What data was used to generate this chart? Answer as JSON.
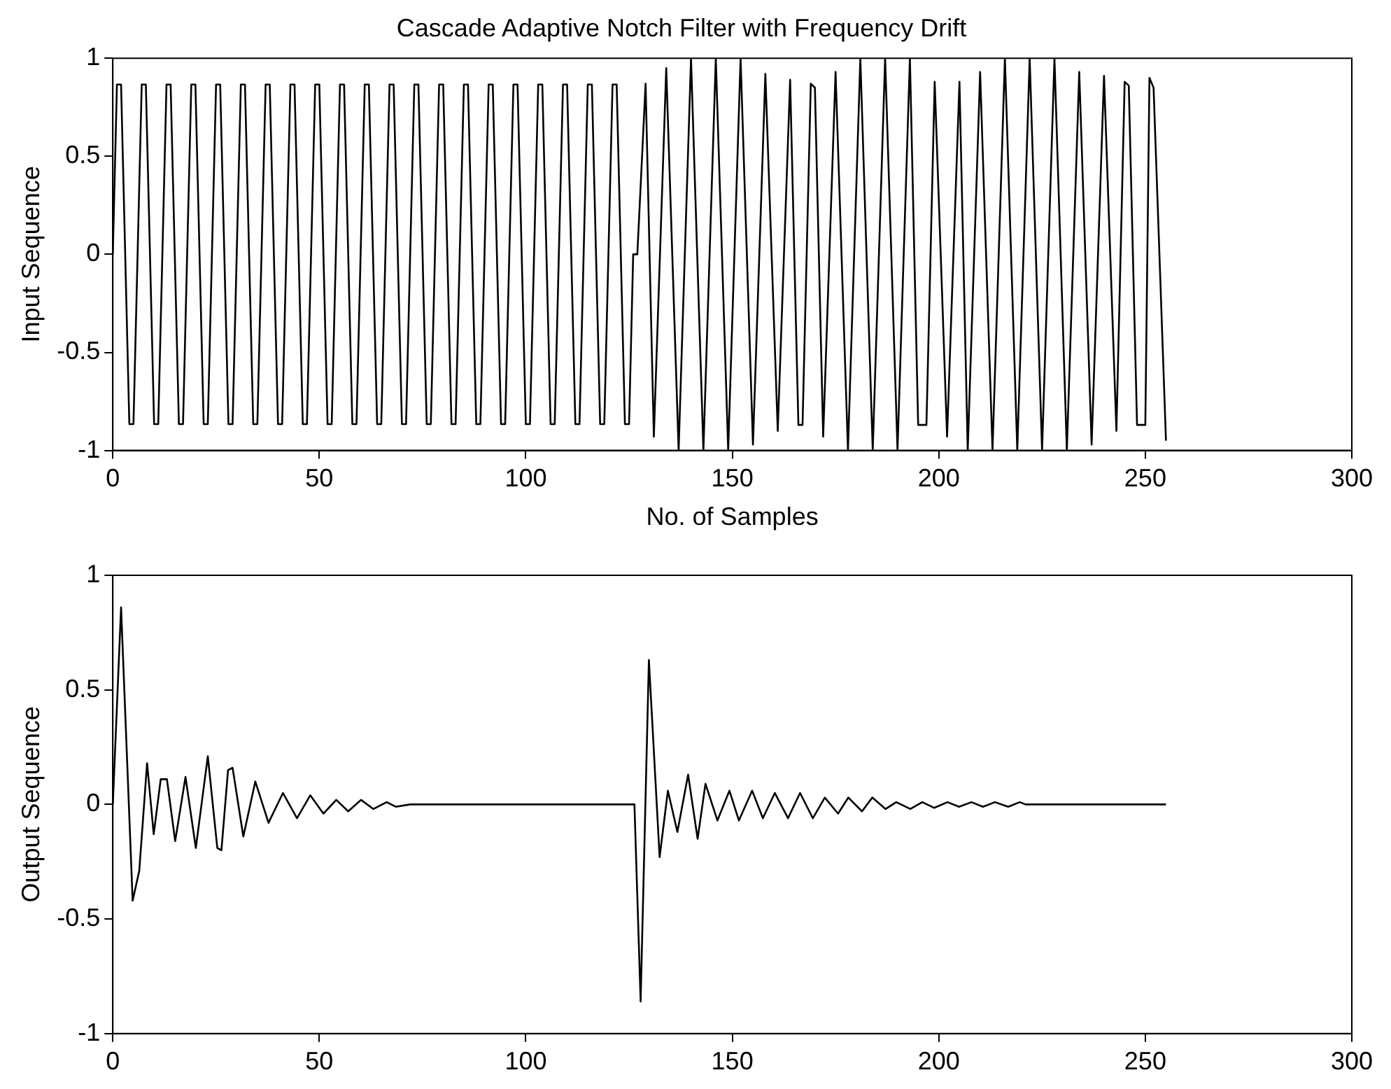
{
  "chart_data": [
    {
      "type": "line",
      "title": "Cascade Adaptive Notch Filter with Frequency Drift",
      "xlabel": "No. of Samples",
      "ylabel": "Input Sequence",
      "xlim": [
        0,
        300
      ],
      "xticks": [
        0,
        50,
        100,
        150,
        200,
        250,
        300
      ],
      "ylim": [
        -1,
        1
      ],
      "yticks": [
        -1,
        -0.5,
        0,
        0.5,
        1
      ],
      "grid": false,
      "legend": false,
      "series": [
        {
          "color": "#000000",
          "x": [
            0,
            1,
            2,
            4,
            5,
            6,
            7,
            8,
            10,
            11,
            12,
            13,
            14,
            16,
            17,
            18,
            19,
            20,
            22,
            23,
            24,
            25,
            26,
            28,
            29,
            30,
            31,
            32,
            34,
            35,
            36,
            37,
            38,
            40,
            41,
            42,
            43,
            44,
            46,
            47,
            48,
            49,
            50,
            52,
            53,
            54,
            55,
            56,
            58,
            59,
            60,
            61,
            62,
            64,
            65,
            66,
            67,
            68,
            70,
            71,
            72,
            73,
            74,
            76,
            77,
            78,
            79,
            80,
            82,
            83,
            84,
            85,
            86,
            88,
            89,
            90,
            91,
            92,
            94,
            95,
            96,
            97,
            98,
            100,
            101,
            102,
            103,
            104,
            106,
            107,
            108,
            109,
            110,
            112,
            113,
            114,
            115,
            116,
            118,
            119,
            120,
            121,
            122,
            124,
            125,
            126,
            127,
            129,
            131,
            134,
            137,
            140,
            143,
            146,
            149,
            152,
            155,
            158,
            161,
            164,
            166,
            167,
            169,
            170,
            172,
            175,
            178,
            181,
            184,
            187,
            190,
            193,
            195,
            197,
            199,
            202,
            205,
            207,
            210,
            213,
            216,
            219,
            222,
            225,
            228,
            231,
            234,
            237,
            240,
            243,
            245,
            246,
            248,
            250,
            251,
            252,
            255
          ],
          "values": [
            0,
            0.866,
            0.866,
            -0.866,
            -0.866,
            0,
            0.866,
            0.866,
            -0.866,
            -0.866,
            0,
            0.866,
            0.866,
            -0.866,
            -0.866,
            0,
            0.866,
            0.866,
            -0.866,
            -0.866,
            0,
            0.866,
            0.866,
            -0.866,
            -0.866,
            0,
            0.866,
            0.866,
            -0.866,
            -0.866,
            0,
            0.866,
            0.866,
            -0.866,
            -0.866,
            0,
            0.866,
            0.866,
            -0.866,
            -0.866,
            0,
            0.866,
            0.866,
            -0.866,
            -0.866,
            0,
            0.866,
            0.866,
            -0.866,
            -0.866,
            0,
            0.866,
            0.866,
            -0.866,
            -0.866,
            0,
            0.866,
            0.866,
            -0.866,
            -0.866,
            0,
            0.866,
            0.866,
            -0.866,
            -0.866,
            0,
            0.866,
            0.866,
            -0.866,
            -0.866,
            0,
            0.866,
            0.866,
            -0.866,
            -0.866,
            0,
            0.866,
            0.866,
            -0.866,
            -0.866,
            0,
            0.866,
            0.866,
            -0.866,
            -0.866,
            0,
            0.866,
            0.866,
            -0.866,
            -0.866,
            0,
            0.866,
            0.866,
            -0.866,
            -0.866,
            0,
            0.866,
            0.866,
            -0.866,
            -0.866,
            0,
            0.866,
            0.866,
            -0.866,
            -0.866,
            0,
            0,
            0.87,
            -0.93,
            0.95,
            -1,
            1,
            -1,
            1,
            -1,
            1,
            -0.97,
            0.92,
            -0.9,
            0.89,
            -0.87,
            -0.87,
            0.87,
            0.85,
            -0.93,
            0.93,
            -1,
            1,
            -1,
            1,
            -1,
            1,
            -0.87,
            -0.87,
            0.88,
            -0.93,
            0.88,
            -1,
            0.93,
            -1,
            1,
            -1,
            1,
            -1,
            1,
            -1,
            0.93,
            -0.97,
            0.91,
            -0.9,
            0.88,
            0.86,
            -0.87,
            -0.87,
            0.9,
            0.85,
            -0.95
          ]
        }
      ]
    },
    {
      "type": "line",
      "ylabel": "Output Sequence",
      "xlim": [
        0,
        300
      ],
      "xticks": [
        0,
        50,
        100,
        150,
        200,
        250,
        300
      ],
      "ylim": [
        -1,
        1
      ],
      "yticks": [
        -1,
        -0.5,
        0,
        0.5,
        1
      ],
      "grid": false,
      "legend": false,
      "series": [
        {
          "color": "#000000",
          "x": [
            0,
            2,
            4.8,
            6.4,
            8.3,
            9.9,
            11.6,
            13.1,
            15.1,
            17.6,
            20.1,
            23,
            25.3,
            26.3,
            27.9,
            29,
            31.6,
            34.5,
            37.7,
            41.2,
            44.6,
            47.8,
            51,
            54.1,
            57,
            60.1,
            63.1,
            66.3,
            68.5,
            72,
            126.3,
            127.8,
            129.8,
            132.4,
            134.4,
            136.7,
            139.3,
            141.6,
            143.5,
            146.4,
            149.3,
            151.6,
            154.8,
            157.4,
            160.3,
            163.5,
            166.4,
            169.5,
            172.4,
            175.6,
            178.1,
            181.4,
            183.9,
            187.1,
            189.7,
            193.1,
            196,
            198.9,
            202.1,
            204.9,
            207.9,
            210.7,
            213.6,
            216.8,
            219.6,
            221,
            255
          ],
          "values": [
            0,
            0.86,
            -0.42,
            -0.29,
            0.18,
            -0.13,
            0.11,
            0.11,
            -0.16,
            0.12,
            -0.19,
            0.21,
            -0.19,
            -0.2,
            0.15,
            0.16,
            -0.14,
            0.1,
            -0.08,
            0.05,
            -0.06,
            0.04,
            -0.04,
            0.02,
            -0.03,
            0.02,
            -0.02,
            0.01,
            -0.01,
            0,
            0,
            -0.86,
            0.63,
            -0.23,
            0.06,
            -0.12,
            0.13,
            -0.15,
            0.09,
            -0.07,
            0.06,
            -0.07,
            0.06,
            -0.06,
            0.05,
            -0.06,
            0.05,
            -0.06,
            0.03,
            -0.04,
            0.03,
            -0.03,
            0.03,
            -0.02,
            0.01,
            -0.02,
            0.01,
            -0.015,
            0.01,
            -0.01,
            0.01,
            -0.01,
            0.01,
            -0.01,
            0.01,
            0,
            0
          ]
        }
      ]
    }
  ]
}
